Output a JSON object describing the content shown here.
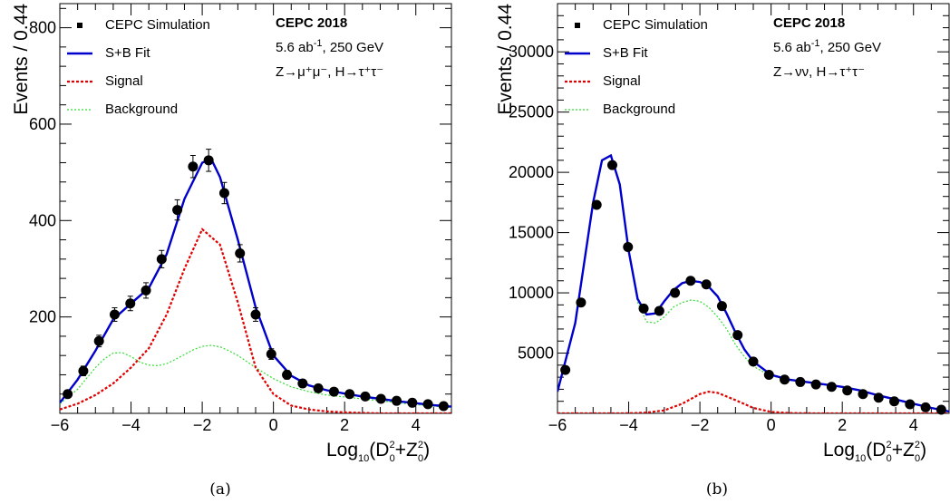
{
  "chart_data": [
    {
      "type": "line",
      "panel_caption": "(a)",
      "ylabel": "Events / 0.44",
      "xlabel": {
        "base": "Log",
        "sub10": "10",
        "open": "(D",
        "sub0a": "0",
        "sup2a": "2",
        "plus": "+Z",
        "sub0b": "0",
        "sup2b": "2",
        "close": ")"
      },
      "xlim": [
        -6,
        5
      ],
      "ylim": [
        0,
        850
      ],
      "xticks": [
        -6,
        -4,
        -2,
        0,
        2,
        4
      ],
      "xtick_labels": [
        "−6",
        "−4",
        "−2",
        "0",
        "2",
        "4"
      ],
      "yticks": [
        200,
        400,
        600,
        800
      ],
      "ytick_labels": [
        "200",
        "400",
        "600",
        "800"
      ],
      "legend": [
        "CEPC Simulation",
        "S+B Fit",
        "Signal",
        "Background"
      ],
      "annotations": {
        "title": "CEPC 2018",
        "lumi": "5.6 ab",
        "lumi_sup": "-1",
        "lumi_rest": ", 250 GeV",
        "process": "Z→μ⁺μ⁻, H→τ⁺τ⁻"
      },
      "series": [
        {
          "name": "CEPC Simulation",
          "style": "points",
          "x": [
            -5.78,
            -5.34,
            -4.9,
            -4.46,
            -4.02,
            -3.58,
            -3.14,
            -2.7,
            -2.26,
            -1.82,
            -1.38,
            -0.94,
            -0.5,
            -0.06,
            0.38,
            0.82,
            1.26,
            1.7,
            2.14,
            2.58,
            3.02,
            3.46,
            3.9,
            4.34,
            4.78
          ],
          "y": [
            40,
            88,
            150,
            205,
            228,
            255,
            320,
            422,
            512,
            525,
            457,
            332,
            205,
            123,
            80,
            62,
            52,
            45,
            40,
            35,
            30,
            26,
            22,
            19,
            15
          ],
          "err": [
            7,
            10,
            12,
            14,
            15,
            16,
            18,
            21,
            23,
            23,
            22,
            18,
            14,
            11,
            9,
            8,
            7,
            7,
            6,
            6,
            5,
            5,
            5,
            4,
            4
          ]
        },
        {
          "name": "S+B Fit",
          "style": "solid",
          "color": "#0000cc",
          "x": [
            -6,
            -5.5,
            -5,
            -4.5,
            -4,
            -3.5,
            -3,
            -2.5,
            -2,
            -1.75,
            -1.5,
            -1,
            -0.5,
            0,
            0.5,
            1,
            1.5,
            2,
            2.5,
            3,
            3.5,
            4,
            4.5,
            5
          ],
          "y": [
            22,
            70,
            130,
            195,
            228,
            260,
            330,
            445,
            520,
            528,
            490,
            360,
            220,
            120,
            78,
            58,
            48,
            41,
            35,
            30,
            25,
            21,
            17,
            14
          ]
        },
        {
          "name": "Signal",
          "style": "dashed",
          "color": "#e00000",
          "x": [
            -6,
            -5.5,
            -5,
            -4.5,
            -4,
            -3.5,
            -3,
            -2.5,
            -2,
            -1.5,
            -1,
            -0.5,
            0,
            0.5,
            1,
            1.5,
            2,
            2.5,
            3,
            3.5,
            4,
            4.5,
            5
          ],
          "y": [
            8,
            20,
            38,
            62,
            95,
            135,
            205,
            300,
            382,
            350,
            230,
            95,
            40,
            16,
            8,
            4,
            2,
            1,
            0,
            0,
            0,
            0,
            0
          ]
        },
        {
          "name": "Background",
          "style": "dotted",
          "color": "#33dd33",
          "x": [
            -6,
            -5.5,
            -5,
            -4.75,
            -4.5,
            -4.25,
            -4,
            -3.75,
            -3.5,
            -3.25,
            -3,
            -2.75,
            -2.5,
            -2.25,
            -2,
            -1.75,
            -1.5,
            -1.25,
            -1,
            -0.5,
            0,
            0.5,
            1,
            1.5,
            2,
            2.5,
            3,
            3.5,
            4,
            4.5,
            5
          ],
          "y": [
            20,
            50,
            95,
            113,
            125,
            126,
            118,
            106,
            100,
            99,
            103,
            112,
            122,
            132,
            139,
            141,
            138,
            130,
            120,
            95,
            72,
            55,
            45,
            38,
            34,
            30,
            26,
            22,
            18,
            15,
            12
          ]
        }
      ]
    },
    {
      "type": "line",
      "panel_caption": "(b)",
      "ylabel": "Events / 0.44",
      "xlabel": {
        "base": "Log",
        "sub10": "10",
        "open": "(D",
        "sub0a": "0",
        "sup2a": "2",
        "plus": "+Z",
        "sub0b": "0",
        "sup2b": "2",
        "close": ")"
      },
      "xlim": [
        -6,
        5
      ],
      "ylim": [
        0,
        34000
      ],
      "xticks": [
        -6,
        -4,
        -2,
        0,
        2,
        4
      ],
      "xtick_labels": [
        "−6",
        "−4",
        "−2",
        "0",
        "2",
        "4"
      ],
      "yticks": [
        5000,
        10000,
        15000,
        20000,
        25000,
        30000
      ],
      "ytick_labels": [
        "5000",
        "10000",
        "15000",
        "20000",
        "25000",
        "30000"
      ],
      "legend": [
        "CEPC Simulation",
        "S+B Fit",
        "Signal",
        "Background"
      ],
      "annotations": {
        "title": "CEPC 2018",
        "lumi": "5.6 ab",
        "lumi_sup": "-1",
        "lumi_rest": ", 250 GeV",
        "process": "Z→νν, H→τ⁺τ⁻"
      },
      "series": [
        {
          "name": "CEPC Simulation",
          "style": "points",
          "x": [
            -5.78,
            -5.34,
            -4.9,
            -4.46,
            -4.02,
            -3.58,
            -3.14,
            -2.7,
            -2.26,
            -1.82,
            -1.38,
            -0.94,
            -0.5,
            -0.06,
            0.38,
            0.82,
            1.26,
            1.7,
            2.14,
            2.58,
            3.02,
            3.46,
            3.9,
            4.34,
            4.78
          ],
          "y": [
            3600,
            9200,
            17300,
            20600,
            13800,
            8700,
            8500,
            10000,
            11000,
            10700,
            8900,
            6500,
            4300,
            3200,
            2800,
            2600,
            2400,
            2200,
            1900,
            1600,
            1300,
            1000,
            750,
            500,
            300
          ],
          "err": [
            0,
            0,
            0,
            0,
            0,
            0,
            0,
            0,
            0,
            0,
            0,
            0,
            0,
            0,
            0,
            0,
            0,
            0,
            0,
            0,
            0,
            0,
            0,
            0,
            0
          ]
        },
        {
          "name": "S+B Fit",
          "style": "solid",
          "color": "#0000cc",
          "x": [
            -6,
            -5.5,
            -5,
            -4.75,
            -4.5,
            -4.25,
            -4,
            -3.75,
            -3.5,
            -3.25,
            -3,
            -2.75,
            -2.5,
            -2.25,
            -2,
            -1.75,
            -1.5,
            -1.25,
            -1,
            -0.75,
            -0.5,
            0,
            0.5,
            1,
            1.5,
            2,
            2.5,
            3,
            3.5,
            4,
            4.5,
            5
          ],
          "y": [
            1800,
            7500,
            17500,
            21000,
            21400,
            19000,
            13500,
            9500,
            8200,
            8300,
            9300,
            10200,
            10800,
            11000,
            10900,
            10500,
            9700,
            8300,
            6700,
            5300,
            4300,
            3200,
            2800,
            2600,
            2400,
            2200,
            1900,
            1500,
            1150,
            800,
            450,
            150
          ]
        },
        {
          "name": "Signal",
          "style": "dashed",
          "color": "#e00000",
          "x": [
            -6,
            -5,
            -4,
            -3.5,
            -3,
            -2.5,
            -2,
            -1.75,
            -1.5,
            -1,
            -0.5,
            0,
            0.5,
            1,
            2,
            3,
            4,
            5
          ],
          "y": [
            0,
            0,
            10,
            60,
            250,
            800,
            1600,
            1800,
            1700,
            1100,
            450,
            120,
            30,
            5,
            0,
            0,
            0,
            0
          ]
        },
        {
          "name": "Background",
          "style": "dotted",
          "color": "#33dd33",
          "x": [
            -6,
            -5.5,
            -5,
            -4.75,
            -4.5,
            -4.25,
            -4,
            -3.75,
            -3.5,
            -3.25,
            -3,
            -2.75,
            -2.5,
            -2.25,
            -2,
            -1.75,
            -1.5,
            -1.25,
            -1,
            -0.75,
            -0.5,
            0,
            0.5,
            1,
            1.5,
            2,
            2.5,
            3,
            3.5,
            4,
            4.5,
            5
          ],
          "y": [
            1800,
            7500,
            17500,
            21000,
            21400,
            19000,
            13500,
            9200,
            7600,
            7500,
            8000,
            8800,
            9200,
            9400,
            9300,
            8800,
            8000,
            7000,
            5700,
            4700,
            3900,
            3100,
            2800,
            2600,
            2400,
            2200,
            1900,
            1500,
            1150,
            800,
            450,
            150
          ]
        }
      ]
    }
  ]
}
